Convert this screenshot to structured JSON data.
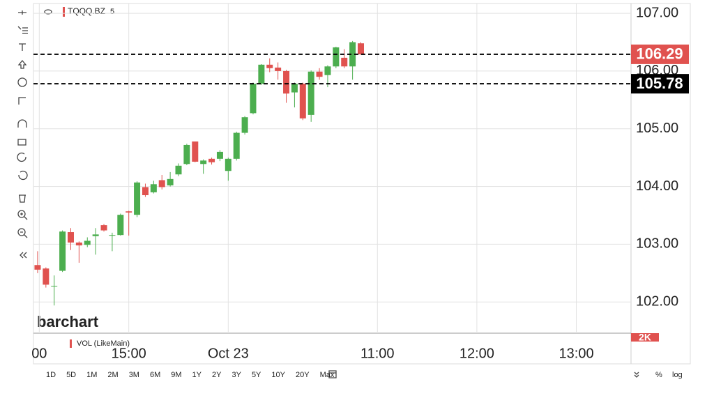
{
  "chart_data": {
    "type": "candlestick",
    "title": "TQQQ.BZ",
    "interval": "5",
    "up_color": "#4cae4f",
    "down_color": "#e0524f",
    "open": [
      102.64,
      102.58,
      102.28,
      102.54,
      103.21,
      103.03,
      102.99,
      103.14,
      103.33,
      103.16,
      103.16,
      103.57,
      103.51,
      103.99,
      103.9,
      104.11,
      104.02,
      104.21,
      104.39,
      104.78,
      104.39,
      104.48,
      104.48,
      104.27,
      104.48,
      104.93,
      105.27,
      105.78,
      106.11,
      106.06,
      106.0,
      105.63,
      105.78,
      105.24,
      105.99,
      105.93,
      106.08,
      106.23,
      106.08,
      106.48
    ],
    "high": [
      102.88,
      102.6,
      102.46,
      103.24,
      103.28,
      103.05,
      103.12,
      103.28,
      103.35,
      103.2,
      103.53,
      103.58,
      104.09,
      104.05,
      104.1,
      104.2,
      104.25,
      104.4,
      104.74,
      104.78,
      104.47,
      104.5,
      104.63,
      104.5,
      104.95,
      105.22,
      105.8,
      106.12,
      106.22,
      106.15,
      106.02,
      105.8,
      105.8,
      106.01,
      106.05,
      106.1,
      106.42,
      106.38,
      106.52,
      106.5
    ],
    "low": [
      102.5,
      102.25,
      101.94,
      102.52,
      102.9,
      102.68,
      102.95,
      102.82,
      103.22,
      102.88,
      103.15,
      103.15,
      103.47,
      103.82,
      103.88,
      103.95,
      104.0,
      104.18,
      104.37,
      104.42,
      104.22,
      104.38,
      104.44,
      104.1,
      104.45,
      104.9,
      105.25,
      105.76,
      105.98,
      105.85,
      105.45,
      105.37,
      105.15,
      105.12,
      105.85,
      105.72,
      106.05,
      106.05,
      105.85,
      106.28
    ],
    "close": [
      102.56,
      102.3,
      102.28,
      103.22,
      103.03,
      102.98,
      103.06,
      103.17,
      103.24,
      103.16,
      103.51,
      103.55,
      104.07,
      103.85,
      104.04,
      103.99,
      104.13,
      104.36,
      104.72,
      104.43,
      104.45,
      104.42,
      104.6,
      104.48,
      104.93,
      105.2,
      105.78,
      106.11,
      106.05,
      106.0,
      105.61,
      105.78,
      105.18,
      105.99,
      105.9,
      106.08,
      106.41,
      106.08,
      106.5,
      106.29
    ],
    "xlim": [
      -0.5,
      71.6
    ],
    "xticks": [
      {
        "value": 0.2,
        "label": "00"
      },
      {
        "value": 11,
        "label": "15:00"
      },
      {
        "value": 23,
        "label": "Oct 23"
      },
      {
        "value": 41,
        "label": "11:00"
      },
      {
        "value": 53,
        "label": "12:00"
      },
      {
        "value": 65,
        "label": "13:00"
      }
    ],
    "ylim": [
      101.46,
      107.17
    ],
    "yticks": [
      {
        "value": 102,
        "label": "102.00"
      },
      {
        "value": 103,
        "label": "103.00"
      },
      {
        "value": 104,
        "label": "104.00"
      },
      {
        "value": 105,
        "label": "105.00"
      },
      {
        "value": 106,
        "label": "106.00"
      },
      {
        "value": 107,
        "label": "107.00"
      }
    ],
    "grid": true,
    "price_lines": [
      {
        "value": 106.29,
        "color": "#e0524f"
      },
      {
        "value": 105.78,
        "color": "#000000"
      }
    ]
  },
  "ui": {
    "watermark": "barchart",
    "volume_label": "VOL (LikeMain)",
    "volume_axis": "2K",
    "ranges": [
      "1D",
      "5D",
      "1M",
      "2M",
      "3M",
      "6M",
      "9M",
      "1Y",
      "2Y",
      "3Y",
      "5Y",
      "10Y",
      "20Y",
      "Max"
    ],
    "percent": "%",
    "log": "log"
  }
}
